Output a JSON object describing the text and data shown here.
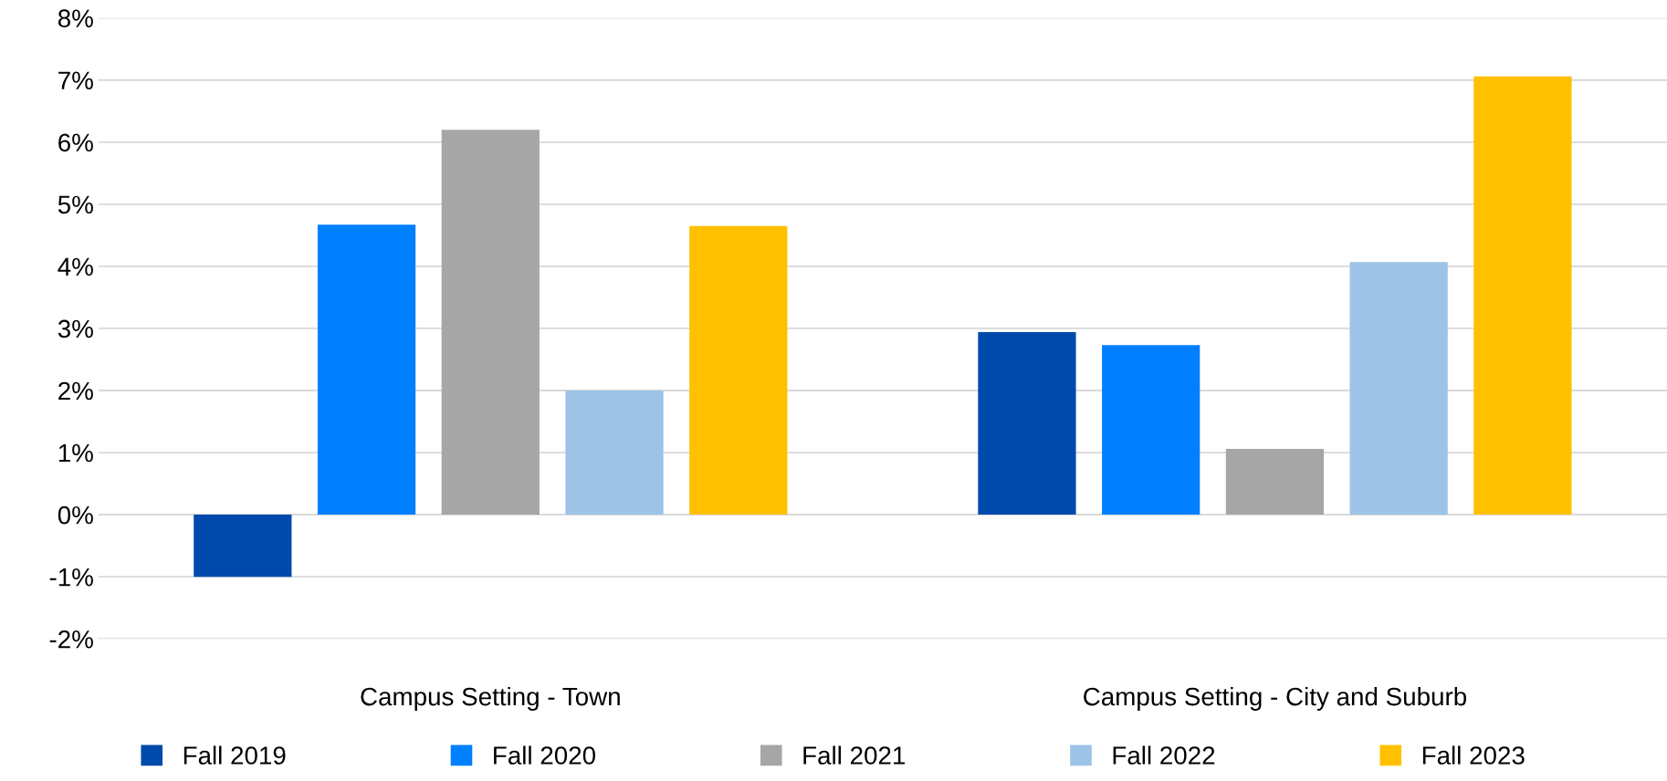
{
  "chart_data": {
    "type": "bar",
    "categories": [
      "Campus Setting - Town",
      "Campus Setting - City and Suburb"
    ],
    "series": [
      {
        "name": "Fall 2019",
        "color": "#004aad",
        "values": [
          -1.0,
          2.94
        ]
      },
      {
        "name": "Fall 2020",
        "color": "#0080ff",
        "values": [
          4.67,
          2.73
        ]
      },
      {
        "name": "Fall 2021",
        "color": "#a6a6a6",
        "values": [
          6.2,
          1.06
        ]
      },
      {
        "name": "Fall 2022",
        "color": "#9dc3e6",
        "values": [
          2.0,
          4.07
        ]
      },
      {
        "name": "Fall 2023",
        "color": "#ffc000",
        "values": [
          4.65,
          7.06
        ]
      }
    ],
    "ylim": [
      -2,
      8
    ],
    "yticks": [
      {
        "value": -2,
        "label": "-2%"
      },
      {
        "value": -1,
        "label": "-1%"
      },
      {
        "value": 0,
        "label": "0%"
      },
      {
        "value": 1,
        "label": "1%"
      },
      {
        "value": 2,
        "label": "2%"
      },
      {
        "value": 3,
        "label": "3%"
      },
      {
        "value": 4,
        "label": "4%"
      },
      {
        "value": 5,
        "label": "5%"
      },
      {
        "value": 6,
        "label": "6%"
      },
      {
        "value": 7,
        "label": "7%"
      },
      {
        "value": 8,
        "label": "8%"
      }
    ],
    "grid": "y",
    "legend": "bottom"
  }
}
